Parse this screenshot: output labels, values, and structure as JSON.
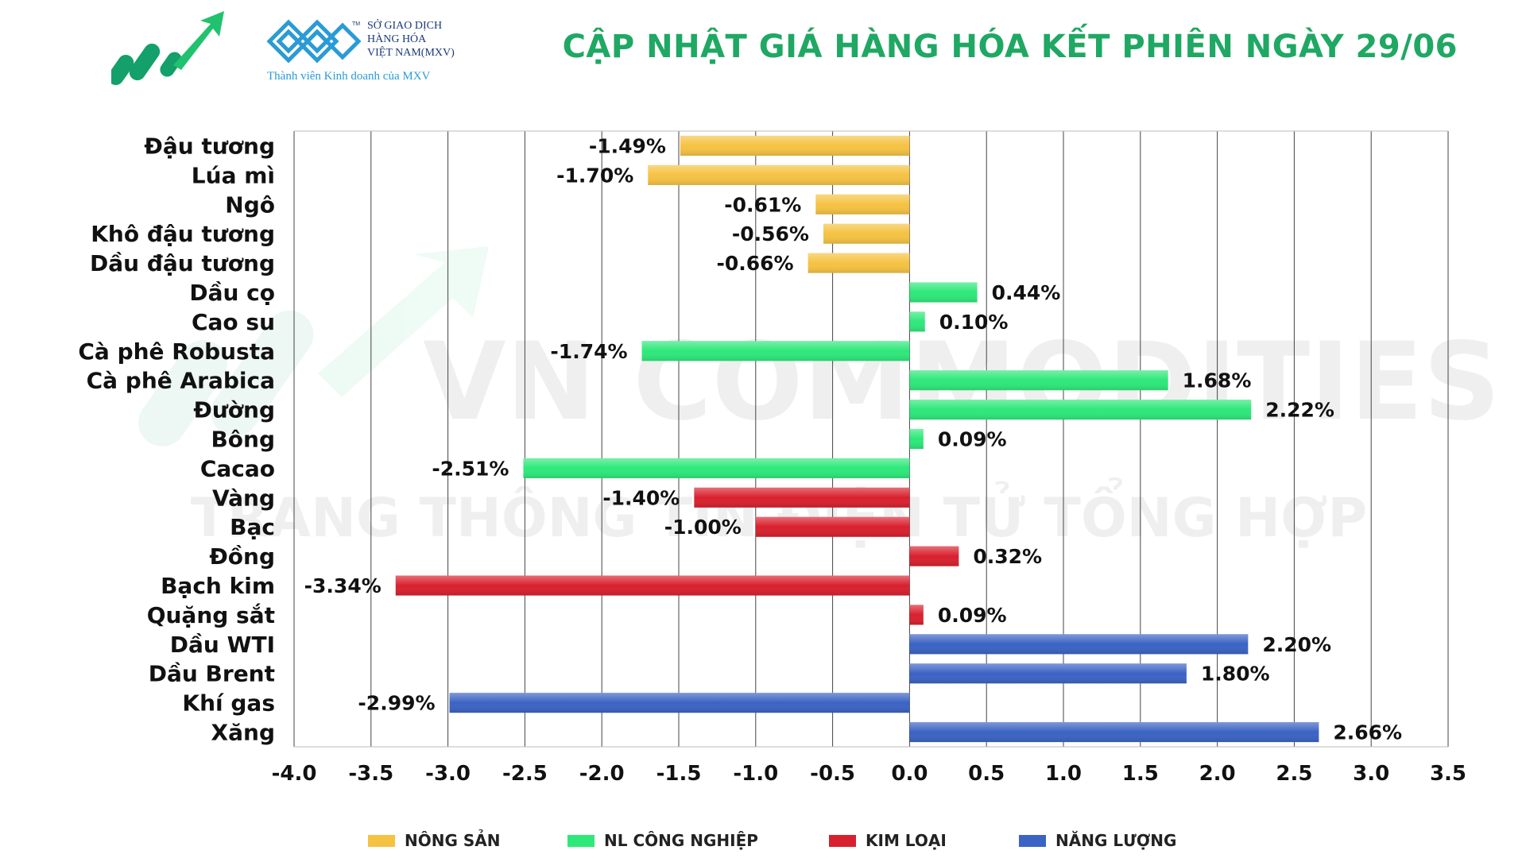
{
  "header": {
    "title": "CẬP NHẬT GIÁ HÀNG HÓA KẾT PHIÊN NGÀY 29/06",
    "mxv_lines": [
      "SỞ GIAO DỊCH",
      "HÀNG HÓA",
      "VIỆT NAM(MXV)"
    ],
    "mxv_tm": "TM",
    "mxv_member": "Thành viên Kinh doanh của MXV"
  },
  "watermark": {
    "line1": "VN COMMODITIES",
    "line2": "TRANG THÔNG TIN ĐIỆN TỬ TỔNG HỢP"
  },
  "colors": {
    "accent": "#1fa863",
    "nong_san": "#f5c242",
    "nl_cong_nghiep": "#2ee87a",
    "kim_loai": "#d9202e",
    "nang_luong": "#3b63c4"
  },
  "chart_data": {
    "type": "bar",
    "orientation": "horizontal",
    "xlim": [
      -4.0,
      3.5
    ],
    "xticks": [
      "-4.0",
      "-3.5",
      "-3.0",
      "-2.5",
      "-2.0",
      "-1.5",
      "-1.0",
      "-0.5",
      "0.0",
      "0.5",
      "1.0",
      "1.5",
      "2.0",
      "2.5",
      "3.0",
      "3.5"
    ],
    "grid": true,
    "legend_position": "bottom",
    "groups": [
      {
        "name": "NÔNG SẢN",
        "color": "#f5c242"
      },
      {
        "name": "NL CÔNG NGHIỆP",
        "color": "#2ee87a"
      },
      {
        "name": "KIM LOẠI",
        "color": "#d9202e"
      },
      {
        "name": "NĂNG LƯỢNG",
        "color": "#3b63c4"
      }
    ],
    "bars": [
      {
        "category": "Đậu tương",
        "value": -1.49,
        "label": "-1.49%",
        "group": 0
      },
      {
        "category": "Lúa mì",
        "value": -1.7,
        "label": "-1.70%",
        "group": 0
      },
      {
        "category": "Ngô",
        "value": -0.61,
        "label": "-0.61%",
        "group": 0
      },
      {
        "category": "Khô đậu tương",
        "value": -0.56,
        "label": "-0.56%",
        "group": 0
      },
      {
        "category": "Dầu đậu tương",
        "value": -0.66,
        "label": "-0.66%",
        "group": 0
      },
      {
        "category": "Dầu cọ",
        "value": 0.44,
        "label": "0.44%",
        "group": 1
      },
      {
        "category": "Cao su",
        "value": 0.1,
        "label": "0.10%",
        "group": 1
      },
      {
        "category": "Cà phê Robusta",
        "value": -1.74,
        "label": "-1.74%",
        "group": 1
      },
      {
        "category": "Cà phê Arabica",
        "value": 1.68,
        "label": "1.68%",
        "group": 1
      },
      {
        "category": "Đường",
        "value": 2.22,
        "label": "2.22%",
        "group": 1
      },
      {
        "category": "Bông",
        "value": 0.09,
        "label": "0.09%",
        "group": 1
      },
      {
        "category": "Cacao",
        "value": -2.51,
        "label": "-2.51%",
        "group": 1
      },
      {
        "category": "Vàng",
        "value": -1.4,
        "label": "-1.40%",
        "group": 2
      },
      {
        "category": "Bạc",
        "value": -1.0,
        "label": "-1.00%",
        "group": 2
      },
      {
        "category": "Đồng",
        "value": 0.32,
        "label": "0.32%",
        "group": 2
      },
      {
        "category": "Bạch kim",
        "value": -3.34,
        "label": "-3.34%",
        "group": 2
      },
      {
        "category": "Quặng sắt",
        "value": 0.09,
        "label": "0.09%",
        "group": 2
      },
      {
        "category": "Dầu WTI",
        "value": 2.2,
        "label": "2.20%",
        "group": 3
      },
      {
        "category": "Dầu Brent",
        "value": 1.8,
        "label": "1.80%",
        "group": 3
      },
      {
        "category": "Khí gas",
        "value": -2.99,
        "label": "-2.99%",
        "group": 3
      },
      {
        "category": "Xăng",
        "value": 2.66,
        "label": "2.66%",
        "group": 3
      }
    ]
  }
}
